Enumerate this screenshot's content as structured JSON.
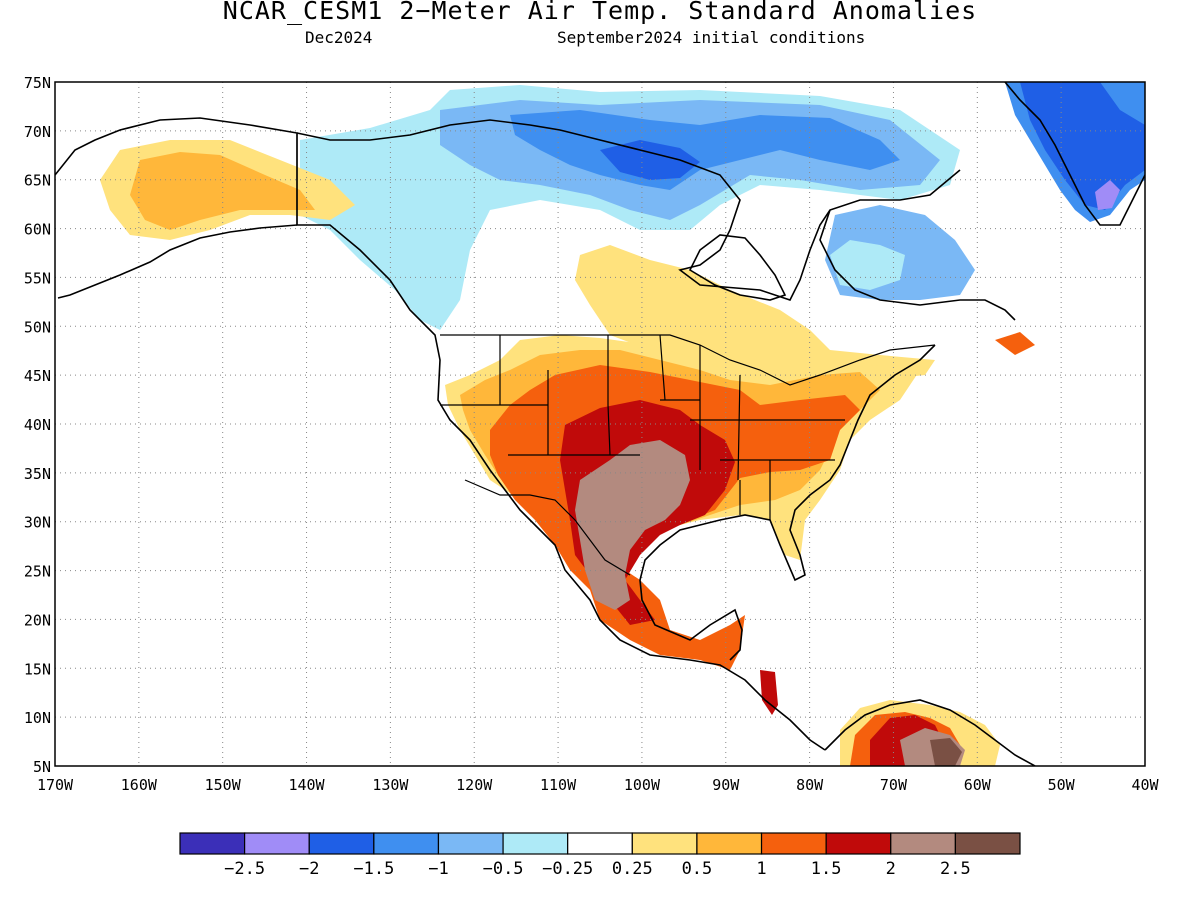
{
  "title": "NCAR_CESM1 2−Meter Air Temp. Standard Anomalies",
  "valid_month": "Dec2024",
  "init_conditions": "September2024 initial conditions",
  "map": {
    "lon_range": [
      -170,
      -40
    ],
    "lat_range": [
      5,
      75
    ],
    "lat_ticks": [
      {
        "v": 75,
        "label": "75N"
      },
      {
        "v": 70,
        "label": "70N"
      },
      {
        "v": 65,
        "label": "65N"
      },
      {
        "v": 60,
        "label": "60N"
      },
      {
        "v": 55,
        "label": "55N"
      },
      {
        "v": 50,
        "label": "50N"
      },
      {
        "v": 45,
        "label": "45N"
      },
      {
        "v": 40,
        "label": "40N"
      },
      {
        "v": 35,
        "label": "35N"
      },
      {
        "v": 30,
        "label": "30N"
      },
      {
        "v": 25,
        "label": "25N"
      },
      {
        "v": 20,
        "label": "20N"
      },
      {
        "v": 15,
        "label": "15N"
      },
      {
        "v": 10,
        "label": "10N"
      },
      {
        "v": 5,
        "label": "5N"
      }
    ],
    "lon_ticks": [
      {
        "v": -170,
        "label": "170W"
      },
      {
        "v": -160,
        "label": "160W"
      },
      {
        "v": -150,
        "label": "150W"
      },
      {
        "v": -140,
        "label": "140W"
      },
      {
        "v": -130,
        "label": "130W"
      },
      {
        "v": -120,
        "label": "120W"
      },
      {
        "v": -110,
        "label": "110W"
      },
      {
        "v": -100,
        "label": "100W"
      },
      {
        "v": -90,
        "label": "90W"
      },
      {
        "v": -80,
        "label": "80W"
      },
      {
        "v": -70,
        "label": "70W"
      },
      {
        "v": -60,
        "label": "60W"
      },
      {
        "v": -50,
        "label": "50W"
      },
      {
        "v": -40,
        "label": "40W"
      }
    ],
    "gridlines": "dotted",
    "anomaly_regions": [
      {
        "region": "Alaska",
        "level": "0.25-1"
      },
      {
        "region": "Arctic Canada",
        "level": "-1.5 to -0.25"
      },
      {
        "region": "Greenland",
        "level": "-2.5 to -0.5"
      },
      {
        "region": "Quebec / Labrador",
        "level": "-1.5 to -0.25"
      },
      {
        "region": "Northern Plains / Great Lakes",
        "level": "0.25-1"
      },
      {
        "region": "Central US",
        "level": "1-2"
      },
      {
        "region": "Texas / Northern Mexico",
        "level": "2-2.5"
      },
      {
        "region": "Eastern US",
        "level": "0.25-1.5"
      },
      {
        "region": "Central Mexico / Central America",
        "level": "1-2"
      },
      {
        "region": "Northern South America",
        "level": "0.25 to >2.5"
      }
    ]
  },
  "colorbar": {
    "colors": [
      "#3b2fb8",
      "#a08cf7",
      "#1f5fe6",
      "#3f8ff0",
      "#7ab8f5",
      "#aeeaf7",
      "#ffffff",
      "#ffe27d",
      "#ffb73a",
      "#f5600d",
      "#c00a0a",
      "#b38a7f",
      "#7a5044"
    ],
    "labels": [
      "−2.5",
      "−2",
      "−1.5",
      "−1",
      "−0.5",
      "−0.25",
      "0.25",
      "0.5",
      "1",
      "1.5",
      "2",
      "2.5"
    ]
  }
}
